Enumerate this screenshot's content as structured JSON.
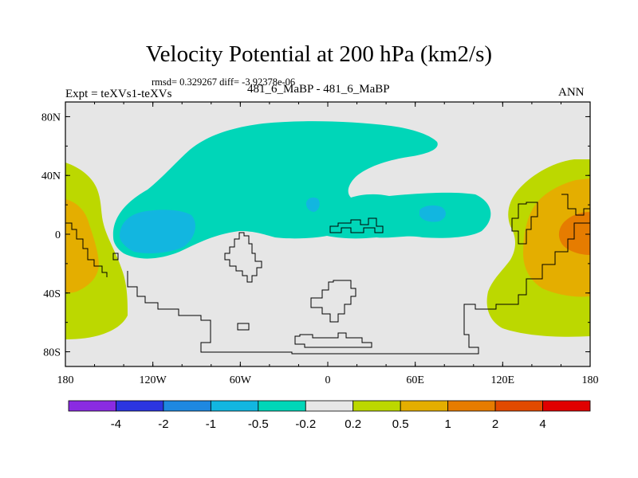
{
  "header": {
    "title": "Velocity Potential at 200 hPa (km2/s)",
    "stats": "rmsd= 0.329267 diff= -3.92378e-06",
    "experiment": "Expt = teXVs1-teXVs",
    "cases": "481_6_MaBP - 481_6_MaBP",
    "season": "ANN"
  },
  "chart_data": {
    "type": "heatmap",
    "title": "Velocity Potential at 200 hPa (km2/s)",
    "xlabel": "",
    "ylabel": "",
    "x_range": [
      -180,
      180
    ],
    "y_range": [
      -90,
      90
    ],
    "x_ticks": [
      {
        "value": -180,
        "label": "180"
      },
      {
        "value": -120,
        "label": "120W"
      },
      {
        "value": -60,
        "label": "60W"
      },
      {
        "value": 0,
        "label": "0"
      },
      {
        "value": 60,
        "label": "60E"
      },
      {
        "value": 120,
        "label": "120E"
      },
      {
        "value": 180,
        "label": "180"
      }
    ],
    "y_ticks": [
      {
        "value": 80,
        "label": "80N"
      },
      {
        "value": 40,
        "label": "40N"
      },
      {
        "value": 0,
        "label": "0"
      },
      {
        "value": -40,
        "label": "40S"
      },
      {
        "value": -80,
        "label": "80S"
      }
    ],
    "colorbar": {
      "colors": [
        "#8a2be2",
        "#2b35e0",
        "#1e88e0",
        "#12b6e0",
        "#00d6b8",
        "#e6e6e6",
        "#bcd800",
        "#e4ae00",
        "#e67c00",
        "#e24a00",
        "#e00000"
      ],
      "labels": [
        "-4",
        "-2",
        "-1",
        "-0.5",
        "-0.2",
        "0.2",
        "0.5",
        "1",
        "2",
        "4"
      ]
    },
    "regions": [
      {
        "level": "-0.2 to -0.5",
        "description": "broad negative region over northern mid-latitudes and the Atlantic/Africa",
        "center": [
          -45,
          30
        ]
      },
      {
        "level": "-0.5 to -1",
        "description": "local minimum near the equatorial Atlantic",
        "center": [
          -120,
          2
        ]
      },
      {
        "level": "-0.5 to -1",
        "description": "small minimum over the Sahara",
        "center": [
          -15,
          28
        ]
      },
      {
        "level": "-0.5 to -1",
        "description": "small minimum over Arabia",
        "center": [
          60,
          20
        ]
      },
      {
        "level": "0.2 to 0.5",
        "description": "positive region over the western Pacific",
        "center": [
          150,
          0
        ]
      },
      {
        "level": "0.2 to 0.5",
        "description": "positive region over the eastern Pacific",
        "center": [
          -170,
          0
        ]
      },
      {
        "level": "0.5 to 1",
        "description": "positive core over the western Pacific",
        "center": [
          155,
          -5
        ]
      },
      {
        "level": "1 to 2",
        "description": "strongest positive core near 170E",
        "center": [
          170,
          0
        ]
      },
      {
        "level": "0.5 to 1",
        "description": "positive core over the eastern Pacific",
        "center": [
          -172,
          -5
        ]
      }
    ]
  }
}
